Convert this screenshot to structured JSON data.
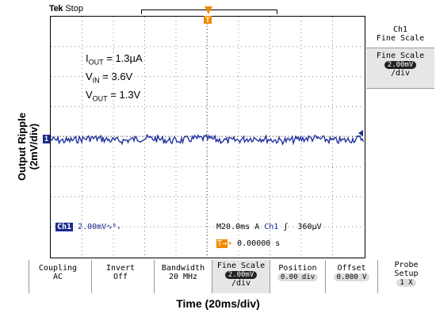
{
  "header": {
    "brand": "Tek",
    "state": "Stop"
  },
  "axes": {
    "ylabel_line1": "Output Ripple",
    "ylabel_line2": "(2mV/div)",
    "xlabel": "Time (20ms/div)"
  },
  "annotations": {
    "iout_label": "I",
    "iout_sub": "OUT",
    "iout_value": " = 1.3µA",
    "vin_label": "V",
    "vin_sub": "IN",
    "vin_value": " = 3.6V",
    "vout_label": "V",
    "vout_sub": "OUT",
    "vout_value": " = 1.3V"
  },
  "markers": {
    "channel": "1",
    "trigger_marker": "T"
  },
  "side_menu": {
    "title_line1": "Ch1",
    "title_line2": "Fine Scale",
    "button_line1": "Fine Scale",
    "button_value": "2.00mV",
    "button_unit": "/div"
  },
  "status": {
    "ch_label": "Ch1",
    "ch_scale": "2.00mV",
    "bw_symbol": "∿ᴮᵥ",
    "timebase": "M20.0ms",
    "trig_mode": "A",
    "trig_source": "Ch1",
    "trig_slope": "ʃ",
    "trig_level": "360µV",
    "trig_pos_icon": "T→",
    "trig_pos_value": "0.00000 s"
  },
  "bottom_menu": [
    {
      "line1": "Coupling",
      "line2": "AC",
      "value": ""
    },
    {
      "line1": "Invert",
      "line2": "Off",
      "value": ""
    },
    {
      "line1": "Bandwidth",
      "line2": "20 MHz",
      "value": ""
    },
    {
      "line1": "Fine Scale",
      "line2": "/div",
      "value": "2.00mV"
    },
    {
      "line1": "Position",
      "line2": "",
      "value": "0.00 div"
    },
    {
      "line1": "Offset",
      "line2": "",
      "value": "0.000 V"
    },
    {
      "line1": "Probe",
      "line2": "Setup",
      "value": "1 X"
    }
  ],
  "colors": {
    "trace": "#2233a0",
    "trigger": "#f08a00",
    "channel": "#1b2a8f"
  }
}
